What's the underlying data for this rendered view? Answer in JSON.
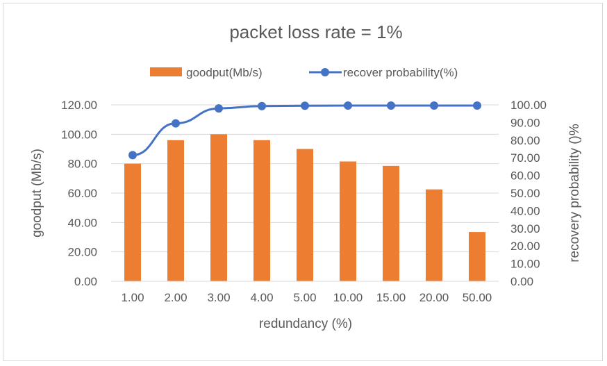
{
  "chart_data": {
    "type": "bar+line",
    "title": "packet loss rate = 1%",
    "categories": [
      "1.00",
      "2.00",
      "3.00",
      "4.00",
      "5.00",
      "10.00",
      "15.00",
      "20.00",
      "50.00"
    ],
    "series": [
      {
        "name": "goodput(Mb/s)",
        "type": "bar",
        "axis": "left",
        "color": "#ed7d31",
        "values": [
          80,
          96,
          100,
          96,
          90,
          81.5,
          78.5,
          62.5,
          33.5
        ]
      },
      {
        "name": "recover probability(%)",
        "type": "line",
        "axis": "right",
        "color": "#4472c4",
        "values": [
          71.5,
          89.5,
          98,
          99.3,
          99.5,
          99.6,
          99.6,
          99.6,
          99.6
        ]
      }
    ],
    "xlabel": "redundancy (%)",
    "ylabel_left": "goodput (Mb/s)",
    "ylabel_right": "recovery probability ()%",
    "ylim_left": [
      0,
      120
    ],
    "yticks_left": [
      "0.00",
      "20.00",
      "40.00",
      "60.00",
      "80.00",
      "100.00",
      "120.00"
    ],
    "ylim_right": [
      0,
      100
    ],
    "yticks_right": [
      "0.00",
      "10.00",
      "20.00",
      "30.00",
      "40.00",
      "50.00",
      "60.00",
      "70.00",
      "80.00",
      "90.00",
      "100.00"
    ],
    "grid": true,
    "legend_position": "top"
  }
}
